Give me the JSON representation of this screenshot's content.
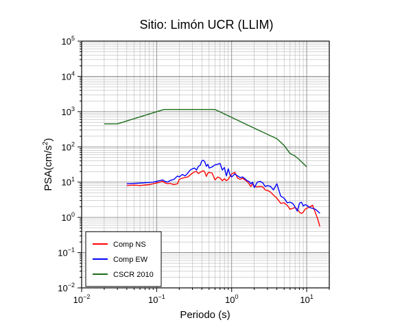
{
  "chart_data": {
    "type": "line",
    "title": "Sitio: Limón UCR (LLIM)",
    "xlabel": "Periodo (s)",
    "ylabel_main": "PSA(cm/s",
    "ylabel_sup": "2",
    "ylabel_close": ")",
    "xscale": "log",
    "yscale": "log",
    "xlim": [
      0.01,
      20
    ],
    "ylim": [
      0.01,
      100000
    ],
    "grid": true,
    "legend_position": "bottom-left",
    "x_ticks": [
      {
        "base": "10",
        "exp": "−2"
      },
      {
        "base": "10",
        "exp": "−1"
      },
      {
        "base": "10",
        "exp": "0"
      },
      {
        "base": "10",
        "exp": "1"
      }
    ],
    "y_ticks": [
      {
        "base": "10",
        "exp": "−2"
      },
      {
        "base": "10",
        "exp": "−1"
      },
      {
        "base": "10",
        "exp": "0"
      },
      {
        "base": "10",
        "exp": "1"
      },
      {
        "base": "10",
        "exp": "2"
      },
      {
        "base": "10",
        "exp": "3"
      },
      {
        "base": "10",
        "exp": "4"
      },
      {
        "base": "10",
        "exp": "5"
      }
    ],
    "series": [
      {
        "name": "Comp NS",
        "color": "#ff0000",
        "x": [
          0.04,
          0.05,
          0.06,
          0.07,
          0.08,
          0.09,
          0.1,
          0.11,
          0.12,
          0.13,
          0.14,
          0.15,
          0.17,
          0.19,
          0.2,
          0.22,
          0.24,
          0.26,
          0.28,
          0.3,
          0.32,
          0.34,
          0.36,
          0.38,
          0.4,
          0.42,
          0.44,
          0.46,
          0.48,
          0.5,
          0.55,
          0.6,
          0.65,
          0.7,
          0.75,
          0.8,
          0.85,
          0.9,
          0.95,
          1.0,
          1.1,
          1.2,
          1.3,
          1.4,
          1.5,
          1.6,
          1.7,
          1.8,
          1.9,
          2.0,
          2.2,
          2.4,
          2.6,
          2.8,
          3.0,
          3.3,
          3.6,
          4.0,
          4.5,
          5.0,
          5.5,
          6.0,
          6.5,
          7.0,
          7.5,
          8.0,
          8.5,
          9.0,
          9.5,
          10.0,
          11.0,
          12.0,
          13.0,
          14.0,
          15.0
        ],
        "values": [
          8.0,
          8.2,
          8.0,
          8.3,
          8.5,
          9.0,
          9.5,
          10.0,
          10.5,
          9.5,
          9.0,
          9.2,
          8.5,
          9.0,
          12.0,
          13.0,
          13.5,
          14.0,
          16.0,
          18.0,
          19.5,
          20.0,
          17.5,
          19.0,
          20.0,
          21.0,
          19.0,
          14.5,
          18.0,
          19.0,
          18.0,
          11.5,
          14.0,
          13.0,
          11.0,
          12.5,
          11.0,
          12.0,
          14.5,
          17.0,
          19.0,
          13.0,
          12.0,
          13.0,
          11.5,
          10.5,
          9.0,
          7.5,
          9.0,
          7.6,
          7.3,
          7.5,
          7.3,
          6.0,
          5.8,
          5.2,
          4.3,
          3.5,
          2.5,
          2.6,
          2.2,
          1.7,
          1.8,
          1.9,
          1.7,
          1.4,
          1.3,
          1.4,
          1.7,
          1.8,
          2.0,
          2.2,
          1.4,
          0.9,
          0.55
        ]
      },
      {
        "name": "Comp EW",
        "color": "#0000ff",
        "x": [
          0.04,
          0.05,
          0.06,
          0.07,
          0.08,
          0.09,
          0.1,
          0.11,
          0.12,
          0.13,
          0.14,
          0.15,
          0.17,
          0.19,
          0.2,
          0.22,
          0.24,
          0.26,
          0.28,
          0.3,
          0.32,
          0.34,
          0.36,
          0.38,
          0.4,
          0.42,
          0.44,
          0.46,
          0.48,
          0.5,
          0.55,
          0.6,
          0.65,
          0.7,
          0.75,
          0.8,
          0.85,
          0.9,
          0.95,
          1.0,
          1.1,
          1.2,
          1.3,
          1.4,
          1.5,
          1.6,
          1.7,
          1.8,
          1.9,
          2.0,
          2.2,
          2.4,
          2.6,
          2.8,
          3.0,
          3.3,
          3.6,
          4.0,
          4.5,
          5.0,
          5.5,
          6.0,
          6.5,
          7.0,
          7.5,
          8.0,
          8.5,
          9.0,
          9.5,
          10.0,
          11.0,
          12.0,
          13.0,
          14.0,
          15.0
        ],
        "values": [
          9.0,
          9.2,
          9.4,
          9.6,
          9.8,
          10.0,
          10.5,
          11.0,
          11.5,
          10.5,
          10.0,
          11.0,
          12.0,
          15.0,
          14.0,
          16.5,
          15.0,
          18.0,
          22.0,
          24.0,
          25.0,
          22.0,
          28.0,
          30.0,
          40.0,
          42.0,
          37.0,
          28.0,
          32.0,
          25.0,
          27.0,
          31.0,
          32.0,
          34.0,
          22.0,
          26.0,
          15.0,
          24.0,
          16.0,
          14.0,
          17.0,
          15.0,
          13.5,
          14.0,
          12.5,
          11.0,
          10.5,
          9.0,
          10.0,
          7.0,
          10.0,
          10.5,
          9.5,
          7.5,
          8.0,
          7.5,
          6.0,
          9.0,
          4.0,
          3.5,
          2.6,
          2.7,
          2.5,
          2.0,
          1.5,
          2.5,
          2.7,
          2.1,
          2.3,
          2.2,
          1.9,
          1.8,
          1.7,
          1.5,
          1.3
        ]
      },
      {
        "name": "CSCR 2010",
        "color": "#1a6b1a",
        "x": [
          0.02,
          0.03,
          0.125,
          0.6,
          2.0,
          4.0,
          5.0,
          6.0,
          7.0,
          8.0,
          10.0
        ],
        "values": [
          450,
          450,
          1150,
          1150,
          340,
          170,
          110,
          65,
          55,
          43,
          27
        ]
      }
    ]
  }
}
